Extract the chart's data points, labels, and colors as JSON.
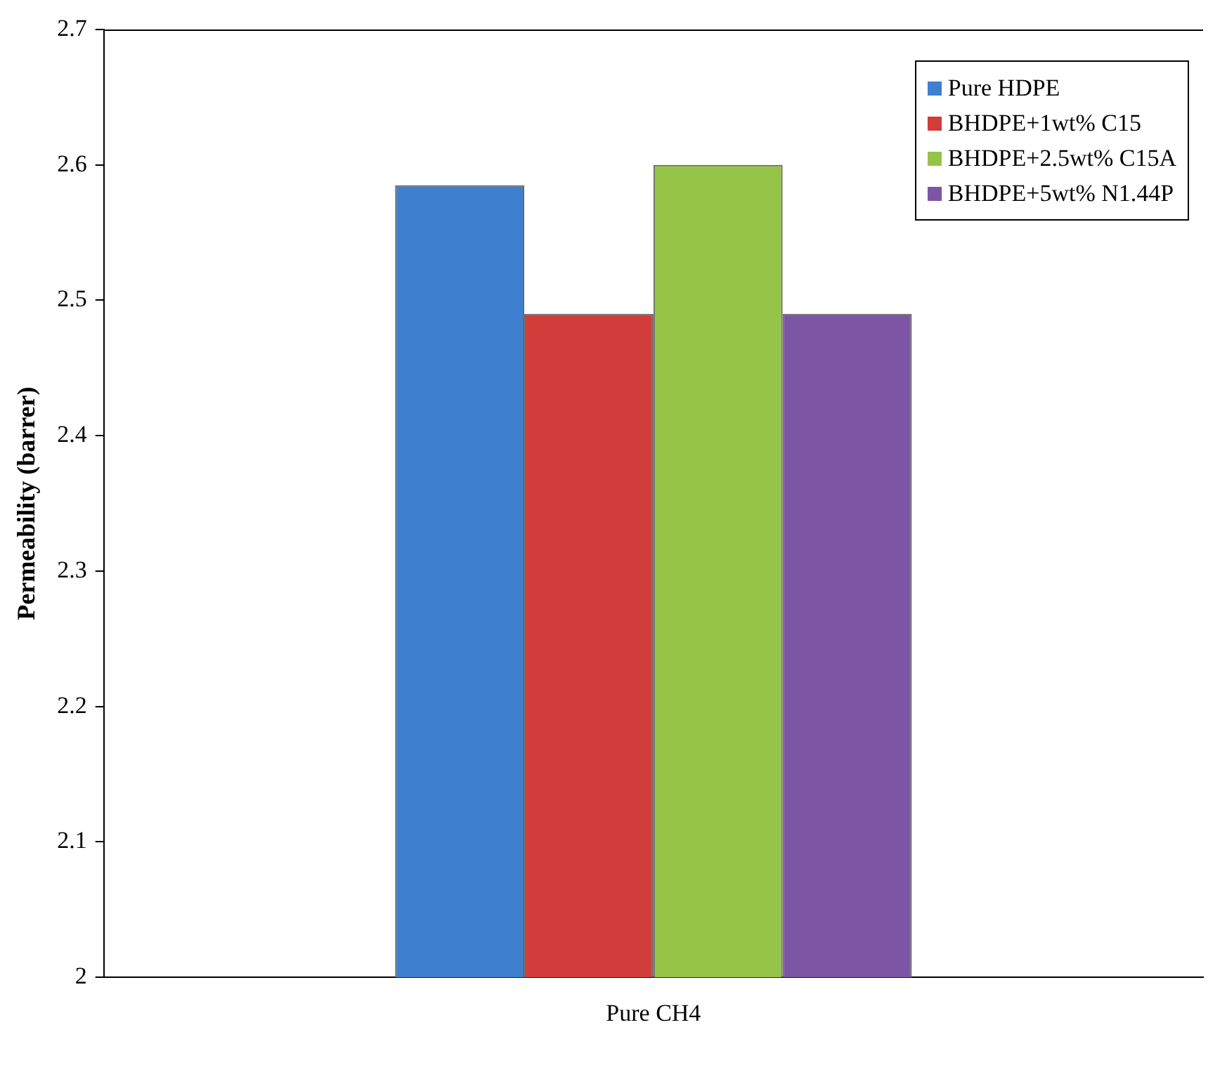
{
  "chart_data": {
    "type": "bar",
    "ylabel": "Permeability (barrer)",
    "categories": [
      "Pure CH4"
    ],
    "series": [
      {
        "name": "Pure HDPE",
        "color": "#3f7fd0",
        "values": [
          2.585
        ]
      },
      {
        "name": "BHDPE+1wt% C15",
        "color": "#d23c3a",
        "values": [
          2.49
        ]
      },
      {
        "name": "BHDPE+2.5wt% C15A",
        "color": "#96c447",
        "values": [
          2.6
        ]
      },
      {
        "name": "BHDPE+5wt% N1.44P",
        "color": "#7d55a5",
        "values": [
          2.49
        ]
      }
    ],
    "ylim": [
      2,
      2.7
    ],
    "yticks": [
      2,
      2.1,
      2.2,
      2.3,
      2.4,
      2.5,
      2.6,
      2.7
    ],
    "grid": false,
    "legend": "top right"
  }
}
